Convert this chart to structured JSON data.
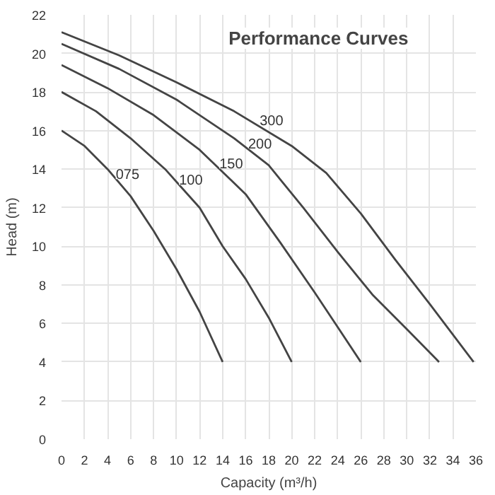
{
  "chart_data": {
    "type": "line",
    "title": "Performance Curves",
    "xlabel": "Capacity (m³/h)",
    "ylabel": "Head (m)",
    "xlim": [
      0,
      36
    ],
    "xticks": [
      0,
      2,
      4,
      6,
      8,
      10,
      12,
      14,
      16,
      18,
      20,
      22,
      24,
      26,
      28,
      30,
      32,
      34,
      36
    ],
    "ylim": [
      0,
      22
    ],
    "yticks": [
      0,
      2,
      4,
      6,
      8,
      10,
      12,
      14,
      16,
      18,
      20,
      22
    ],
    "grid": true,
    "marker": "none",
    "line_style": "solid",
    "series": [
      {
        "name": "075",
        "color": "#444444",
        "x": [
          0,
          2,
          4,
          6,
          8,
          10,
          12,
          14
        ],
        "values": [
          16,
          15.2,
          14,
          12.6,
          10.8,
          8.8,
          6.6,
          4
        ]
      },
      {
        "name": "100",
        "color": "#444444",
        "x": [
          0,
          3,
          6,
          9,
          12,
          14,
          16,
          18,
          20
        ],
        "values": [
          18,
          17,
          15.6,
          14,
          12,
          10,
          8.3,
          6.3,
          4
        ]
      },
      {
        "name": "150",
        "color": "#444444",
        "x": [
          0,
          4,
          8,
          12,
          16,
          19,
          22,
          24,
          26
        ],
        "values": [
          19.4,
          18.2,
          16.8,
          15,
          12.7,
          10.2,
          7.6,
          5.8,
          4
        ]
      },
      {
        "name": "200",
        "color": "#444444",
        "x": [
          0,
          5,
          10,
          15,
          18,
          21,
          24,
          27,
          30,
          32.8
        ],
        "values": [
          20.5,
          19.2,
          17.6,
          15.6,
          14.2,
          12,
          9.7,
          7.5,
          5.7,
          4
        ]
      },
      {
        "name": "300",
        "color": "#444444",
        "x": [
          0,
          5,
          10,
          15,
          20,
          23,
          26,
          29,
          32,
          35.8
        ],
        "values": [
          21.1,
          19.9,
          18.5,
          17,
          15.2,
          13.8,
          11.7,
          9.3,
          7,
          4
        ]
      }
    ]
  }
}
